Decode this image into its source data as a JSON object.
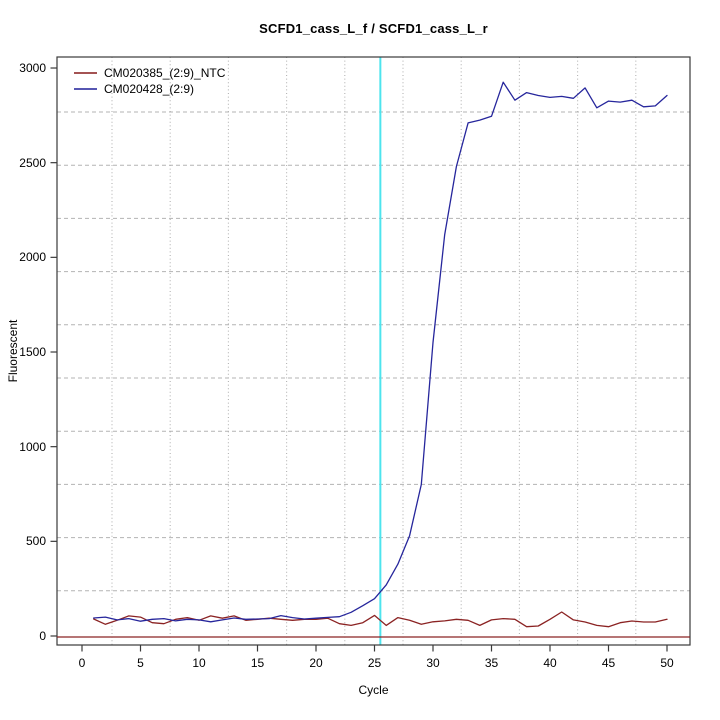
{
  "chart_data": {
    "type": "line",
    "title": "SCFD1_cass_L_f / SCFD1_cass_L_r",
    "xlabel": "Cycle",
    "ylabel": "Fluorescent",
    "x_ticks": [
      0,
      5,
      10,
      15,
      20,
      25,
      30,
      35,
      40,
      45,
      50
    ],
    "y_ticks": [
      0,
      500,
      1000,
      1500,
      2000,
      2500,
      3000
    ],
    "xlim": [
      0,
      50
    ],
    "ylim": [
      0,
      3000
    ],
    "grid": true,
    "legend_position": "top-left",
    "x": [
      1,
      2,
      3,
      4,
      5,
      6,
      7,
      8,
      9,
      10,
      11,
      12,
      13,
      14,
      15,
      16,
      17,
      18,
      19,
      20,
      21,
      22,
      23,
      24,
      25,
      26,
      27,
      28,
      29,
      30,
      31,
      32,
      33,
      34,
      35,
      36,
      37,
      38,
      39,
      40,
      41,
      42,
      43,
      44,
      45,
      46,
      47,
      48,
      49,
      50
    ],
    "series": [
      {
        "name": "CM020385_(2:9)_NTC",
        "color": "#8b2323",
        "values": [
          90,
          62,
          83,
          106,
          100,
          70,
          65,
          88,
          97,
          83,
          106,
          94,
          106,
          83,
          88,
          94,
          88,
          83,
          88,
          88,
          94,
          65,
          56,
          70,
          109,
          56,
          97,
          83,
          62,
          75,
          80,
          88,
          83,
          56,
          85,
          92,
          88,
          49,
          53,
          88,
          127,
          85,
          74,
          56,
          49,
          70,
          79,
          74,
          74,
          88
        ]
      },
      {
        "name": "CM020428_(2:9)",
        "color": "#26269c",
        "values": [
          95,
          100,
          85,
          92,
          78,
          88,
          92,
          80,
          88,
          85,
          75,
          85,
          95,
          88,
          90,
          92,
          108,
          97,
          90,
          94,
          98,
          102,
          125,
          160,
          197,
          270,
          380,
          530,
          800,
          1550,
          2120,
          2480,
          2710,
          2725,
          2745,
          2925,
          2830,
          2870,
          2855,
          2845,
          2850,
          2840,
          2895,
          2790,
          2825,
          2820,
          2830,
          2795,
          2800,
          2855
        ]
      }
    ],
    "threshold_line": {
      "x": 25.5,
      "color": "#4de4ee"
    },
    "baseline": {
      "y": 0,
      "color": "#8b2323"
    },
    "colors": {
      "grid": "#b3b3b3",
      "axis": "#3a3a3a"
    }
  }
}
